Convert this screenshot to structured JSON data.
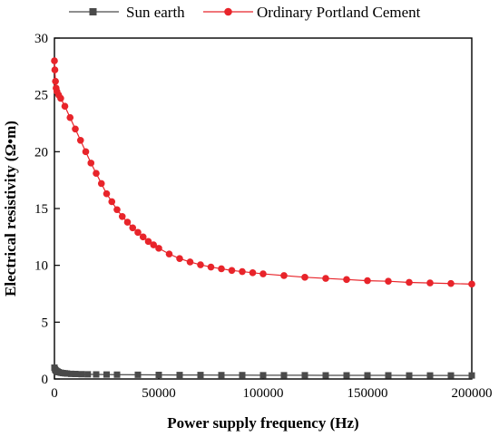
{
  "chart_data": {
    "type": "line",
    "xlabel": "Power supply frequency (Hz)",
    "ylabel": "Electrical resistivity (Ω•m)",
    "xlim": [
      0,
      200000
    ],
    "ylim": [
      0,
      30
    ],
    "xticks": [
      0,
      50000,
      100000,
      150000,
      200000
    ],
    "yticks": [
      0,
      5,
      10,
      15,
      20,
      25,
      30
    ],
    "grid": false,
    "legend_position": "top (above plot)",
    "series": [
      {
        "name": "Sun earth",
        "color": "#4a4a4a",
        "marker": "square",
        "x": [
          0,
          300,
          600,
          1000,
          1500,
          2000,
          3000,
          4000,
          5000,
          6000,
          8000,
          10000,
          13000,
          16000,
          20000,
          25000,
          30000,
          40000,
          50000,
          60000,
          70000,
          80000,
          90000,
          100000,
          110000,
          120000,
          130000,
          140000,
          150000,
          160000,
          170000,
          180000,
          190000,
          200000
        ],
        "y": [
          1.0,
          0.85,
          0.75,
          0.7,
          0.65,
          0.6,
          0.55,
          0.52,
          0.5,
          0.48,
          0.45,
          0.44,
          0.42,
          0.41,
          0.4,
          0.39,
          0.38,
          0.37,
          0.36,
          0.35,
          0.35,
          0.34,
          0.34,
          0.33,
          0.33,
          0.33,
          0.32,
          0.32,
          0.32,
          0.32,
          0.31,
          0.31,
          0.31,
          0.31
        ]
      },
      {
        "name": "Ordinary Portland Cement",
        "color": "#e8242a",
        "marker": "circle",
        "x": [
          0,
          200,
          500,
          800,
          1200,
          2000,
          3000,
          5000,
          7500,
          10000,
          12500,
          15000,
          17500,
          20000,
          22500,
          25000,
          27500,
          30000,
          32500,
          35000,
          37500,
          40000,
          42500,
          45000,
          47500,
          50000,
          55000,
          60000,
          65000,
          70000,
          75000,
          80000,
          85000,
          90000,
          95000,
          100000,
          110000,
          120000,
          130000,
          140000,
          150000,
          160000,
          170000,
          180000,
          190000,
          200000
        ],
        "y": [
          28.0,
          27.2,
          26.2,
          25.6,
          25.3,
          25.0,
          24.7,
          24.0,
          23.0,
          22.0,
          21.0,
          20.0,
          19.0,
          18.1,
          17.2,
          16.3,
          15.6,
          14.9,
          14.3,
          13.8,
          13.3,
          12.9,
          12.5,
          12.1,
          11.8,
          11.5,
          11.0,
          10.6,
          10.3,
          10.05,
          9.85,
          9.7,
          9.55,
          9.45,
          9.35,
          9.25,
          9.1,
          8.95,
          8.85,
          8.75,
          8.65,
          8.6,
          8.5,
          8.45,
          8.4,
          8.35
        ]
      }
    ]
  }
}
